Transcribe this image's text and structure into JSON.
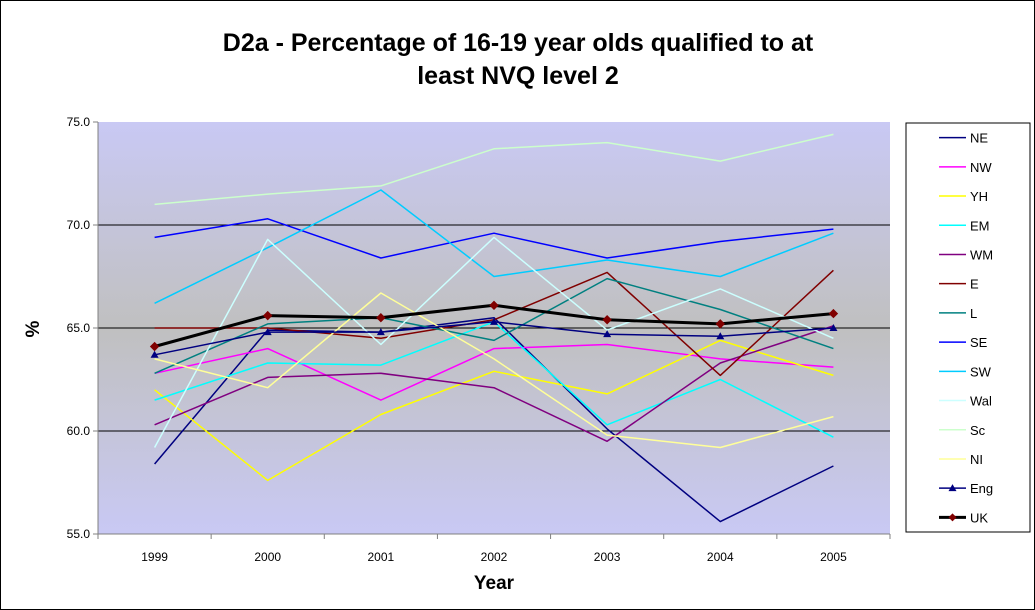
{
  "chart_data": {
    "type": "line",
    "title_lines": [
      "D2a - Percentage of 16-19 year olds qualified to at",
      "least NVQ level 2"
    ],
    "xlabel": "Year",
    "ylabel": "%",
    "categories": [
      "1999",
      "2000",
      "2001",
      "2002",
      "2003",
      "2004",
      "2005"
    ],
    "ylim": [
      55.0,
      75.0
    ],
    "yticks": [
      55.0,
      60.0,
      65.0,
      70.0,
      75.0
    ],
    "ytick_labels": [
      "55.0",
      "60.0",
      "65.0",
      "70.0",
      "75.0"
    ],
    "grid": "horizontal major gridlines at 60, 65, 70",
    "plot_background": "#c9c9f4 to #c0c0c0 vertical gradient",
    "legend_position": "right",
    "series": [
      {
        "name": "NE",
        "color": "#000080",
        "width": 1.5,
        "marker": "none",
        "values": [
          58.4,
          64.9,
          64.8,
          65.5,
          60.1,
          55.6,
          58.3
        ]
      },
      {
        "name": "NW",
        "color": "#ff00ff",
        "width": 1.5,
        "marker": "none",
        "values": [
          62.8,
          64.0,
          61.5,
          64.0,
          64.2,
          63.5,
          63.1
        ]
      },
      {
        "name": "YH",
        "color": "#ffff00",
        "width": 1.5,
        "marker": "none",
        "values": [
          62.0,
          57.6,
          60.8,
          62.9,
          61.8,
          64.4,
          62.7
        ]
      },
      {
        "name": "EM",
        "color": "#00ffff",
        "width": 1.5,
        "marker": "none",
        "values": [
          61.5,
          63.3,
          63.2,
          65.3,
          60.3,
          62.5,
          59.7
        ]
      },
      {
        "name": "WM",
        "color": "#800080",
        "width": 1.5,
        "marker": "none",
        "values": [
          60.3,
          62.6,
          62.8,
          62.1,
          59.5,
          63.3,
          65.1
        ]
      },
      {
        "name": "E",
        "color": "#800000",
        "width": 1.5,
        "marker": "none",
        "values": [
          65.0,
          65.0,
          64.5,
          65.4,
          67.7,
          62.7,
          67.8
        ]
      },
      {
        "name": "L",
        "color": "#008080",
        "width": 1.5,
        "marker": "none",
        "values": [
          62.8,
          65.2,
          65.5,
          64.4,
          67.4,
          65.9,
          64.0
        ]
      },
      {
        "name": "SE",
        "color": "#0000ff",
        "width": 1.5,
        "marker": "none",
        "values": [
          69.4,
          70.3,
          68.4,
          69.6,
          68.4,
          69.2,
          69.8
        ]
      },
      {
        "name": "SW",
        "color": "#00ccff",
        "width": 1.5,
        "marker": "none",
        "values": [
          66.2,
          68.9,
          71.7,
          67.5,
          68.3,
          67.5,
          69.6
        ]
      },
      {
        "name": "Wal",
        "color": "#ccffff",
        "width": 1.5,
        "marker": "none",
        "values": [
          59.2,
          69.3,
          64.2,
          69.4,
          64.9,
          66.9,
          64.5
        ]
      },
      {
        "name": "Sc",
        "color": "#ccffcc",
        "width": 1.5,
        "marker": "none",
        "values": [
          71.0,
          71.5,
          71.9,
          73.7,
          74.0,
          73.1,
          74.4
        ]
      },
      {
        "name": "NI",
        "color": "#ffff99",
        "width": 1.5,
        "marker": "none",
        "values": [
          63.5,
          62.1,
          66.7,
          63.5,
          59.8,
          59.2,
          60.7
        ]
      },
      {
        "name": "Eng",
        "color": "#000080",
        "width": 1.5,
        "marker": "triangle",
        "values": [
          63.7,
          64.8,
          64.8,
          65.3,
          64.7,
          64.6,
          65.0
        ]
      },
      {
        "name": "UK",
        "color": "#000000",
        "width": 3,
        "marker": "diamond",
        "marker_color": "#800000",
        "values": [
          64.1,
          65.6,
          65.5,
          66.1,
          65.4,
          65.2,
          65.7
        ]
      }
    ]
  }
}
